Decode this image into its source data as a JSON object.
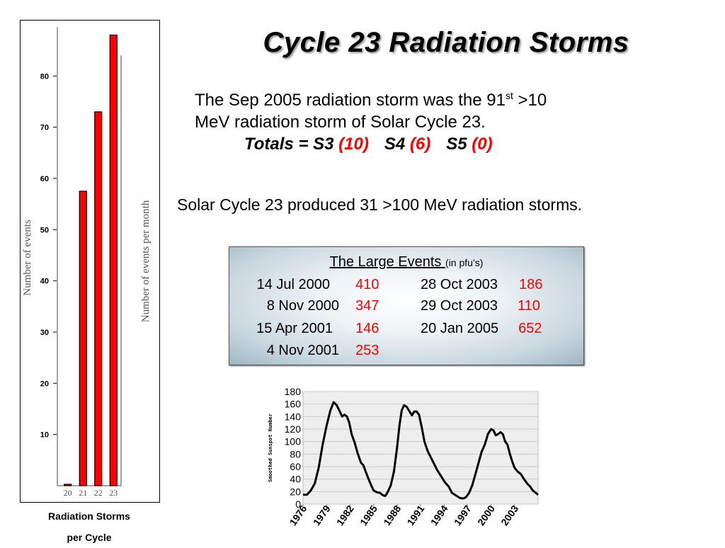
{
  "title": "Cycle 23 Radiation Storms",
  "intro": {
    "line1_before_sup": "The Sep 2005 radiation storm was the 91",
    "sup": "st",
    "line1_after_sup": " >10",
    "line2": "MeV radiation storm of Solar Cycle 23.",
    "totals": {
      "prefix": "Totals = S3 ",
      "s3_count": "(10)",
      "s4_label": "S4 ",
      "s4_count": "(6)",
      "s5_label": "S5 ",
      "s5_count": "(0)"
    }
  },
  "produced_text": "Solar Cycle 23 produced 31 >100 MeV radiation storms.",
  "large_events": {
    "heading": "The Large Events ",
    "unit": "(in pfu’s)",
    "left": [
      {
        "date": "14 Jul 2000",
        "value": "410"
      },
      {
        "date": "8 Nov 2000",
        "value": "347"
      },
      {
        "date": "15 Apr 2001",
        "value": "146"
      },
      {
        "date": "4 Nov 2001",
        "value": "253"
      }
    ],
    "right": [
      {
        "date": "28 Oct 2003",
        "value": "186"
      },
      {
        "date": "29 Oct 2003",
        "value": "110"
      },
      {
        "date": "20 Jan 2005",
        "value": "652"
      }
    ]
  },
  "bar_caption": {
    "line1": "Radiation Storms",
    "line2": "per Cycle"
  },
  "colors": {
    "bar": "#ff0000",
    "values": "#ff0000",
    "line": "#000000"
  },
  "chart_data": [
    {
      "type": "bar",
      "categories": [
        "20",
        "21",
        "22",
        "23"
      ],
      "values": [
        0,
        57.5,
        73,
        88
      ],
      "ylabel": "Number of events",
      "ylabel_right": "Number of events per month",
      "yticks": [
        10,
        20,
        30,
        40,
        50,
        60,
        70,
        80
      ],
      "ylim": [
        0,
        90
      ],
      "grid": false
    },
    {
      "type": "line",
      "ylabel": "Smoothed Sunspot Number",
      "xticks": [
        "1976",
        "1979",
        "1982",
        "1985",
        "1988",
        "1991",
        "1994",
        "1997",
        "2000",
        "2003"
      ],
      "yticks": [
        0,
        20,
        40,
        60,
        80,
        100,
        120,
        140,
        160,
        180
      ],
      "xlim": [
        1976,
        2006
      ],
      "ylim": [
        0,
        180
      ],
      "grid": true,
      "x": [
        1976.0,
        1976.5,
        1977.0,
        1977.5,
        1978.0,
        1978.5,
        1979.0,
        1979.5,
        1979.9,
        1980.3,
        1980.7,
        1981.0,
        1981.3,
        1981.6,
        1981.9,
        1982.2,
        1982.6,
        1983.0,
        1983.4,
        1983.7,
        1984.0,
        1984.3,
        1984.7,
        1985.0,
        1985.4,
        1985.8,
        1986.2,
        1986.5,
        1986.8,
        1987.2,
        1987.6,
        1988.0,
        1988.3,
        1988.6,
        1988.9,
        1989.2,
        1989.5,
        1989.9,
        1990.2,
        1990.5,
        1990.8,
        1991.2,
        1991.5,
        1991.9,
        1992.3,
        1992.7,
        1993.1,
        1993.6,
        1994.1,
        1994.6,
        1995.0,
        1995.5,
        1996.0,
        1996.4,
        1996.8,
        1997.2,
        1997.6,
        1998.0,
        1998.4,
        1998.8,
        1999.2,
        1999.6,
        2000.0,
        2000.3,
        2000.6,
        2000.9,
        2001.2,
        2001.5,
        2001.8,
        2002.1,
        2002.4,
        2002.7,
        2003.0,
        2003.4,
        2003.8,
        2004.2,
        2004.6,
        2005.0,
        2005.3,
        2005.7,
        2006.0
      ],
      "y": [
        15,
        15,
        22,
        33,
        58,
        95,
        125,
        150,
        163,
        158,
        148,
        140,
        143,
        140,
        130,
        112,
        98,
        80,
        66,
        62,
        52,
        42,
        30,
        22,
        19,
        18,
        14,
        13,
        19,
        30,
        52,
        90,
        125,
        150,
        158,
        156,
        150,
        142,
        148,
        148,
        143,
        120,
        100,
        85,
        75,
        65,
        55,
        45,
        35,
        28,
        18,
        14,
        10,
        9,
        11,
        18,
        30,
        48,
        66,
        84,
        95,
        112,
        120,
        118,
        110,
        112,
        115,
        112,
        100,
        95,
        80,
        68,
        58,
        52,
        48,
        40,
        33,
        28,
        22,
        18,
        15
      ]
    }
  ]
}
